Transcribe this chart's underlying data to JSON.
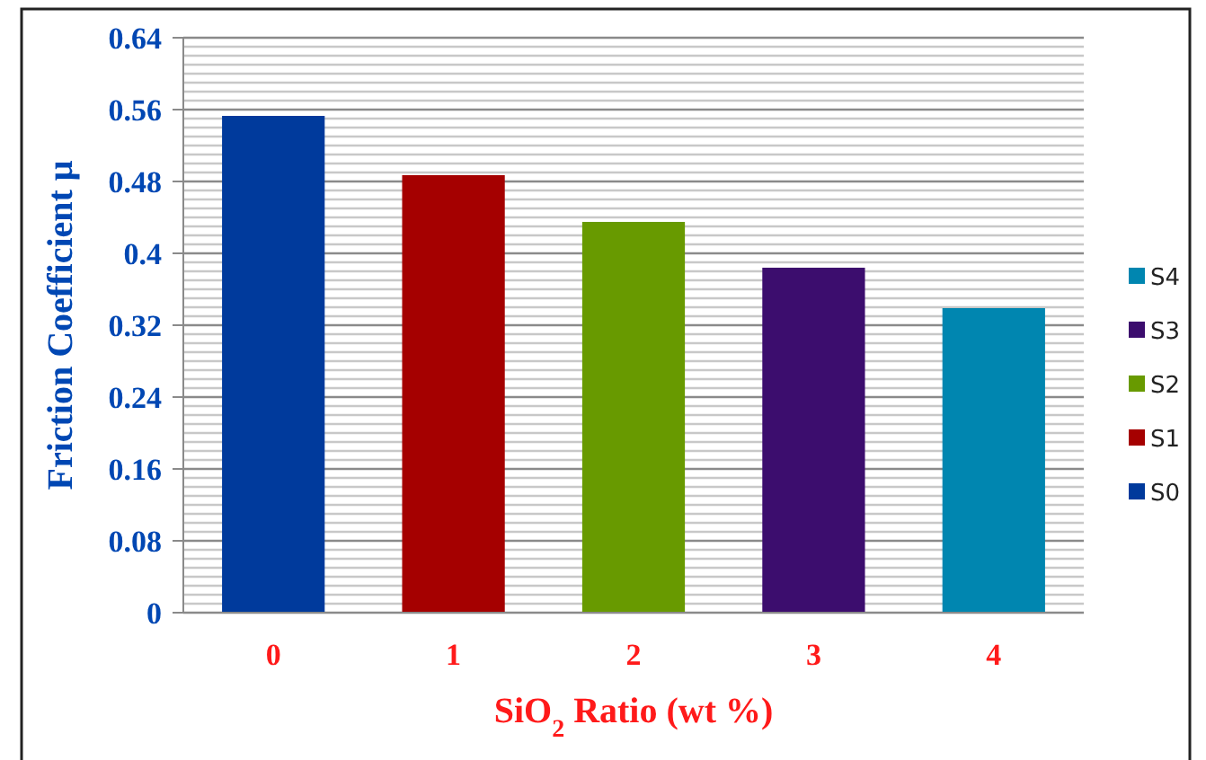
{
  "chart_data": {
    "type": "bar",
    "xlabel": "SiO$_{2}$  Ratio (wt %)",
    "ylabel": "Friction  Coefficient  μ",
    "categories": [
      "0",
      "1",
      "2",
      "3",
      "4"
    ],
    "series": [
      {
        "name": "S0",
        "color": "#003a9c",
        "values": [
          0.553,
          null,
          null,
          null,
          null
        ]
      },
      {
        "name": "S1",
        "color": "#a50000",
        "values": [
          null,
          0.487,
          null,
          null,
          null
        ]
      },
      {
        "name": "S2",
        "color": "#689a00",
        "values": [
          null,
          null,
          0.435,
          null,
          null
        ]
      },
      {
        "name": "S3",
        "color": "#3c0d6e",
        "values": [
          null,
          null,
          null,
          0.384,
          null
        ]
      },
      {
        "name": "S4",
        "color": "#0086b0",
        "values": [
          null,
          null,
          null,
          null,
          0.339
        ]
      }
    ],
    "ylim": [
      0,
      0.64
    ],
    "yticks": [
      0,
      {
        "value": 0.01,
        "label": null
      },
      {
        "value": 0.02,
        "label": null
      },
      {
        "value": 0.03,
        "label": null
      },
      {
        "value": 0.04,
        "label": null
      },
      {
        "value": 0.05,
        "label": null
      },
      {
        "value": 0.06,
        "label": null
      },
      {
        "value": 0.07,
        "label": null
      },
      0.08,
      {
        "value": 0.09,
        "label": null
      },
      {
        "value": 0.1,
        "label": null
      },
      {
        "value": 0.11,
        "label": null
      },
      {
        "value": 0.12,
        "label": null
      },
      {
        "value": 0.13,
        "label": null
      },
      {
        "value": 0.14,
        "label": null
      },
      {
        "value": 0.15,
        "label": null
      },
      0.16,
      {
        "value": 0.17,
        "label": null
      },
      {
        "value": 0.18,
        "label": null
      },
      {
        "value": 0.19,
        "label": null
      },
      {
        "value": 0.2,
        "label": null
      },
      {
        "value": 0.21,
        "label": null
      },
      {
        "value": 0.22,
        "label": null
      },
      {
        "value": 0.23,
        "label": null
      },
      0.24,
      {
        "value": 0.25,
        "label": null
      },
      {
        "value": 0.26,
        "label": null
      },
      {
        "value": 0.27,
        "label": null
      },
      {
        "value": 0.28,
        "label": null
      },
      {
        "value": 0.29,
        "label": null
      },
      {
        "value": 0.3,
        "label": null
      },
      {
        "value": 0.31,
        "label": null
      },
      0.32,
      {
        "value": 0.33,
        "label": null
      },
      {
        "value": 0.34,
        "label": null
      },
      {
        "value": 0.35,
        "label": null
      },
      {
        "value": 0.36,
        "label": null
      },
      {
        "value": 0.37,
        "label": null
      },
      {
        "value": 0.38,
        "label": null
      },
      {
        "value": 0.39,
        "label": null
      },
      0.4,
      {
        "value": 0.41,
        "label": null
      },
      {
        "value": 0.42,
        "label": null
      },
      {
        "value": 0.43,
        "label": null
      },
      {
        "value": 0.44,
        "label": null
      },
      {
        "value": 0.45,
        "label": null
      },
      {
        "value": 0.46,
        "label": null
      },
      {
        "value": 0.47,
        "label": null
      },
      0.48,
      {
        "value": 0.49,
        "label": null
      },
      {
        "value": 0.5,
        "label": null
      },
      {
        "value": 0.51,
        "label": null
      },
      {
        "value": 0.52,
        "label": null
      },
      {
        "value": 0.53,
        "label": null
      },
      {
        "value": 0.54,
        "label": null
      },
      {
        "value": 0.55,
        "label": null
      },
      0.56,
      {
        "value": 0.57,
        "label": null
      },
      {
        "value": 0.58,
        "label": null
      },
      {
        "value": 0.59,
        "label": null
      },
      {
        "value": 0.6,
        "label": null
      },
      {
        "value": 0.61,
        "label": null
      },
      {
        "value": 0.62,
        "label": null
      },
      {
        "value": 0.63,
        "label": null
      },
      0.64
    ],
    "grid": "y",
    "legend": "right"
  }
}
